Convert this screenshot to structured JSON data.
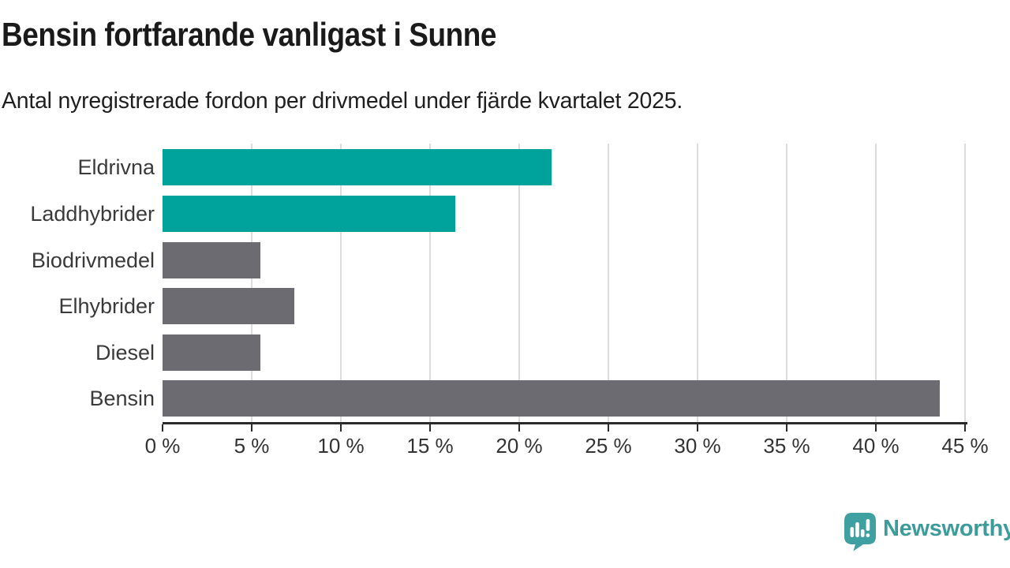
{
  "header": {
    "title": "Bensin fortfarande vanligast i Sunne",
    "subtitle": "Antal nyregistrerade fordon per drivmedel under fjärde kvartalet 2025."
  },
  "chart_data": {
    "type": "bar",
    "orientation": "horizontal",
    "title": "Bensin fortfarande vanligast i Sunne",
    "subtitle": "Antal nyregistrerade fordon per drivmedel under fjärde kvartalet 2025.",
    "categories": [
      "Eldrivna",
      "Laddhybrider",
      "Biodrivmedel",
      "Elhybrider",
      "Diesel",
      "Bensin"
    ],
    "values": [
      21.8,
      16.4,
      5.5,
      7.4,
      5.5,
      43.6
    ],
    "bar_colors": [
      "#00a39b",
      "#00a39b",
      "#6c6b71",
      "#6c6b71",
      "#6c6b71",
      "#6c6b71"
    ],
    "xlabel": "",
    "ylabel": "",
    "xlim": [
      0,
      45
    ],
    "x_ticks": [
      0,
      5,
      10,
      15,
      20,
      25,
      30,
      35,
      40,
      45
    ],
    "x_tick_labels": [
      "0 %",
      "5 %",
      "10 %",
      "15 %",
      "20 %",
      "25 %",
      "30 %",
      "35 %",
      "40 %",
      "45 %"
    ],
    "grid": true,
    "gridline_ticks": [
      5,
      10,
      15,
      20,
      25,
      30,
      35,
      40,
      45
    ],
    "legend": false
  },
  "footer": {
    "brand": "Newsworthy"
  },
  "colors": {
    "accent_teal": "#00a39b",
    "bar_gray": "#6c6b71",
    "gridline": "#dcdcdc",
    "axis": "#2b2b2b",
    "title_text": "#1a1a1a",
    "label_text": "#3a3a3a",
    "brand_teal": "#3b9c99"
  }
}
